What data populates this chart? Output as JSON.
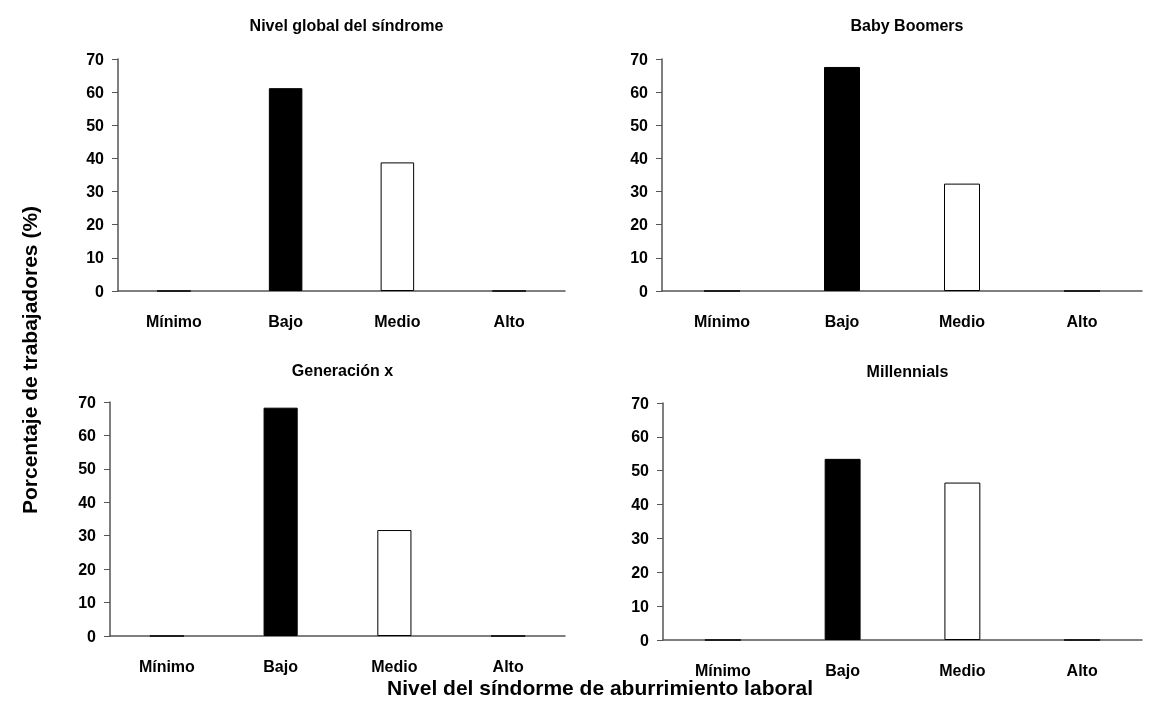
{
  "chart_data": [
    {
      "type": "bar",
      "title": "Nivel global del síndrome",
      "ylabel": "Porcentaje de trabajadores (%)",
      "categories": [
        "Mínimo",
        "Bajo",
        "Medio",
        "Alto"
      ],
      "values": [
        0,
        61.2,
        38.8,
        0
      ],
      "colors": [
        "#000000",
        "#000000",
        "#ffffff",
        "#000000"
      ],
      "ylim": [
        0,
        70
      ],
      "yticks": [
        0,
        10,
        20,
        30,
        40,
        50,
        60,
        70
      ],
      "grid": false
    },
    {
      "type": "bar",
      "title": "Baby Boomers",
      "categories": [
        "Mínimo",
        "Bajo",
        "Medio",
        "Alto"
      ],
      "values": [
        0,
        67.6,
        32.4,
        0
      ],
      "colors": [
        "#000000",
        "#000000",
        "#ffffff",
        "#000000"
      ],
      "ylim": [
        0,
        70
      ],
      "yticks": [
        0,
        10,
        20,
        30,
        40,
        50,
        60,
        70
      ],
      "grid": false
    },
    {
      "type": "bar",
      "title": "Generación x",
      "xlabel": "Nivel del síndorme de aburrimiento laboral",
      "categories": [
        "Mínimo",
        "Bajo",
        "Medio",
        "Alto"
      ],
      "values": [
        0,
        68.3,
        31.7,
        0
      ],
      "colors": [
        "#000000",
        "#000000",
        "#ffffff",
        "#000000"
      ],
      "ylim": [
        0,
        70
      ],
      "yticks": [
        0,
        10,
        20,
        30,
        40,
        50,
        60,
        70
      ],
      "grid": false
    },
    {
      "type": "bar",
      "title": "Millennials",
      "categories": [
        "Mínimo",
        "Bajo",
        "Medio",
        "Alto"
      ],
      "values": [
        0,
        53.5,
        46.5,
        0
      ],
      "colors": [
        "#000000",
        "#000000",
        "#ffffff",
        "#000000"
      ],
      "ylim": [
        0,
        70
      ],
      "yticks": [
        0,
        10,
        20,
        30,
        40,
        50,
        60,
        70
      ],
      "grid": false
    }
  ]
}
